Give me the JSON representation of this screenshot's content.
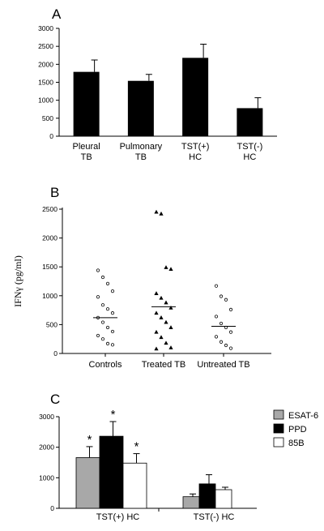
{
  "chart_data": [
    {
      "panel": "A",
      "type": "bar",
      "categories": [
        [
          "Pleural",
          "TB"
        ],
        [
          "Pulmonary",
          "TB"
        ],
        [
          "TST(+)",
          "HC"
        ],
        [
          "TST(-)",
          "HC"
        ]
      ],
      "values": [
        1790,
        1540,
        2180,
        780
      ],
      "errors": [
        330,
        180,
        380,
        290
      ],
      "ylim": [
        0,
        3000
      ],
      "yticks": [
        "0",
        "500",
        "1000",
        "1500",
        "2000",
        "2500",
        "3000"
      ],
      "bar_color": "#000000"
    },
    {
      "panel": "B",
      "type": "scatter",
      "categories": [
        "Controls",
        "Treated TB",
        "Untreated TB"
      ],
      "ylabel": "IFNγ (pg/ml)",
      "ylim": [
        0,
        2500
      ],
      "yticks": [
        "0",
        "500",
        "1000",
        "1500",
        "2000",
        "2500"
      ],
      "series": [
        {
          "marker": "open-circle",
          "values": [
            1440,
            1320,
            1210,
            1080,
            980,
            840,
            770,
            700,
            620,
            540,
            450,
            380,
            310,
            250,
            170,
            150
          ],
          "mean": 620
        },
        {
          "marker": "filled-triangle",
          "values": [
            2450,
            2420,
            1490,
            1460,
            1040,
            960,
            880,
            790,
            700,
            620,
            540,
            450,
            370,
            280,
            180,
            100,
            80
          ],
          "mean": 810
        },
        {
          "marker": "open-circle",
          "values": [
            1170,
            990,
            930,
            760,
            640,
            520,
            450,
            370,
            290,
            200,
            140,
            90
          ],
          "mean": 470
        }
      ]
    },
    {
      "panel": "C",
      "type": "bar",
      "categories": [
        "TST(+) HC",
        "TST(-) HC"
      ],
      "series": [
        {
          "name": "ESAT-6",
          "color": "#a8a8a8",
          "values": [
            1660,
            380
          ],
          "errors": [
            360,
            90
          ]
        },
        {
          "name": "PPD",
          "color": "#000000",
          "values": [
            2360,
            800
          ],
          "errors": [
            480,
            300
          ]
        },
        {
          "name": "85B",
          "color": "#ffffff",
          "values": [
            1480,
            610
          ],
          "errors": [
            310,
            80
          ]
        }
      ],
      "significance": [
        [
          "*",
          "*",
          "*"
        ],
        [
          "",
          "",
          ""
        ]
      ],
      "ylim": [
        0,
        3000
      ],
      "yticks": [
        "0",
        "1000",
        "2000",
        "3000"
      ],
      "legend_position": "top-right"
    }
  ],
  "labels": {
    "panelA": "A",
    "panelB": "B",
    "panelC": "C"
  }
}
